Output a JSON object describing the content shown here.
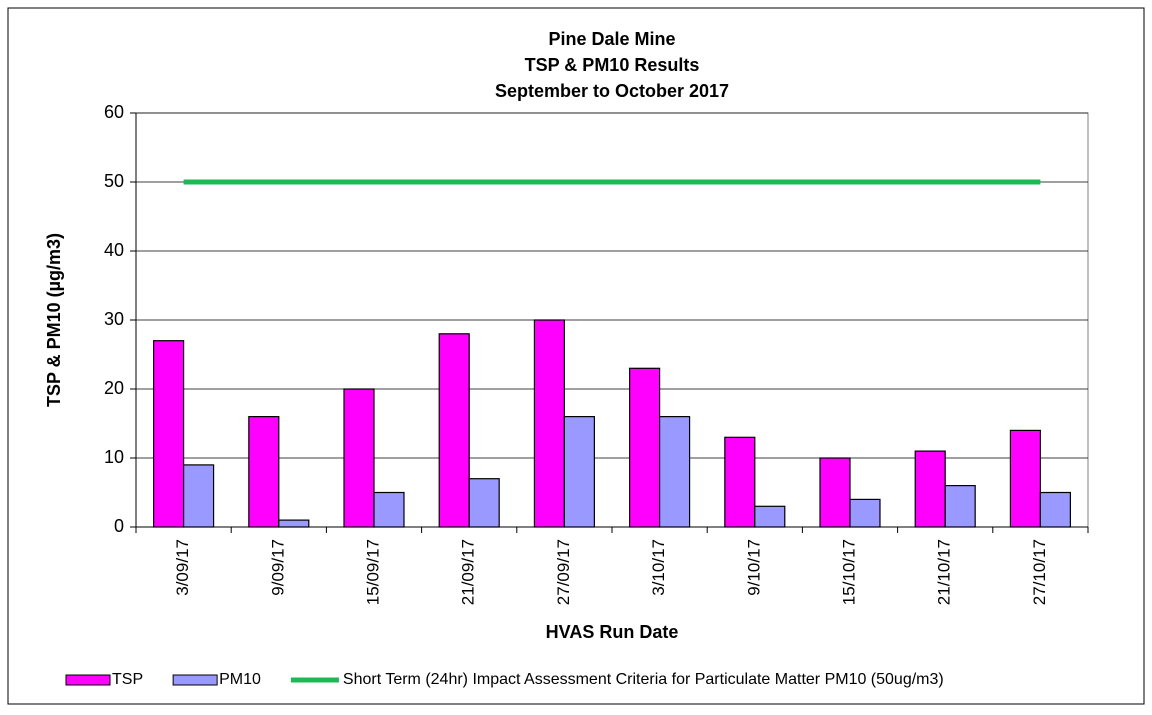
{
  "chart_data": {
    "type": "bar",
    "title": [
      "Pine Dale Mine",
      "TSP & PM10 Results",
      "September  to October 2017"
    ],
    "x_label": "HVAS Run Date",
    "y_label": "TSP & PM10 (µg/m3)",
    "categories": [
      "3/09/17",
      "9/09/17",
      "15/09/17",
      "21/09/17",
      "27/09/17",
      "3/10/17",
      "9/10/17",
      "15/10/17",
      "21/10/17",
      "27/10/17"
    ],
    "series": [
      {
        "name": "TSP",
        "type": "bar",
        "color": "#ff00ff",
        "values": [
          27,
          16,
          20,
          28,
          30,
          23,
          13,
          10,
          11,
          14
        ]
      },
      {
        "name": "PM10",
        "type": "bar",
        "color": "#9999ff",
        "values": [
          9,
          1,
          5,
          7,
          16,
          16,
          3,
          4,
          6,
          5
        ]
      },
      {
        "name": "Short Term (24hr) Impact Assessment Criteria for Particulate Matter PM10 (50ug/m3)",
        "type": "line",
        "color": "#1db954",
        "values": [
          50,
          50,
          50,
          50,
          50,
          50,
          50,
          50,
          50,
          50
        ]
      }
    ],
    "ylim": [
      0,
      60
    ],
    "yticks": [
      0,
      10,
      20,
      30,
      40,
      50,
      60
    ],
    "grid": true,
    "legend": "bottom"
  }
}
